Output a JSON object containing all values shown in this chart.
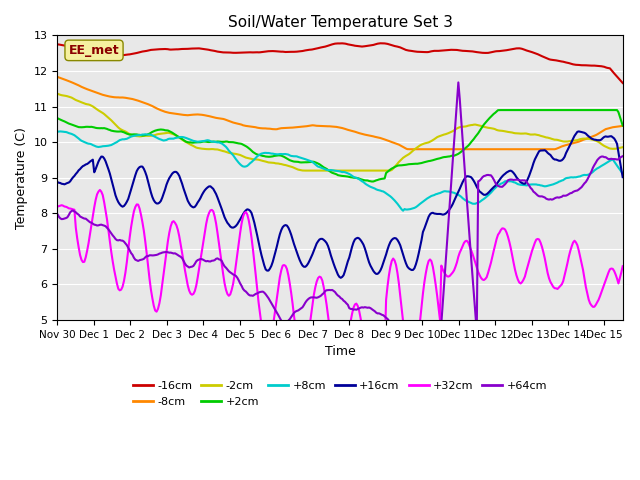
{
  "title": "Soil/Water Temperature Set 3",
  "xlabel": "Time",
  "ylabel": "Temperature (C)",
  "ylim": [
    5.0,
    13.0
  ],
  "yticks": [
    5.0,
    6.0,
    7.0,
    8.0,
    9.0,
    10.0,
    11.0,
    12.0,
    13.0
  ],
  "annotation": "EE_met",
  "bg_color": "#e8e8e8",
  "series_colors": [
    "#cc0000",
    "#ff8800",
    "#cccc00",
    "#00cc00",
    "#00cccc",
    "#000099",
    "#ff00ff",
    "#8800cc"
  ],
  "series_labels": [
    "-16cm",
    "-8cm",
    "-2cm",
    "+2cm",
    "+8cm",
    "+16cm",
    "+32cm",
    "+64cm"
  ],
  "n_pts": 400,
  "lw": 1.5
}
